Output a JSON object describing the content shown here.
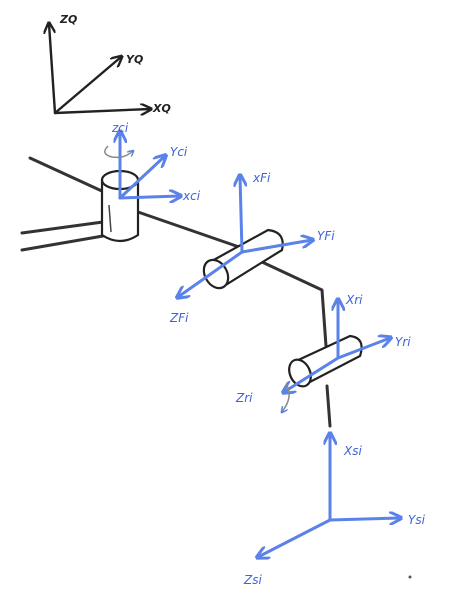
{
  "colors": {
    "ink": "#222222",
    "bone": "#333333",
    "axis_blue": "#5b82e8",
    "label_blue": "#3d63d8"
  },
  "world_frame": {
    "z_label": "ZQ",
    "y_label": "YQ",
    "x_label": "XQ"
  },
  "frame_c": {
    "z_label": "zci",
    "y_label": "Yci",
    "x_label": "xci"
  },
  "frame_f": {
    "x_label": "xFi",
    "y_label": "YFi",
    "z_label": "ZFi"
  },
  "frame_r": {
    "x_label": "Xri",
    "y_label": "Yri",
    "z_label": "Zri"
  },
  "frame_s": {
    "x_label": "Xsi",
    "y_label": "Ysi",
    "z_label": "Zsi"
  }
}
